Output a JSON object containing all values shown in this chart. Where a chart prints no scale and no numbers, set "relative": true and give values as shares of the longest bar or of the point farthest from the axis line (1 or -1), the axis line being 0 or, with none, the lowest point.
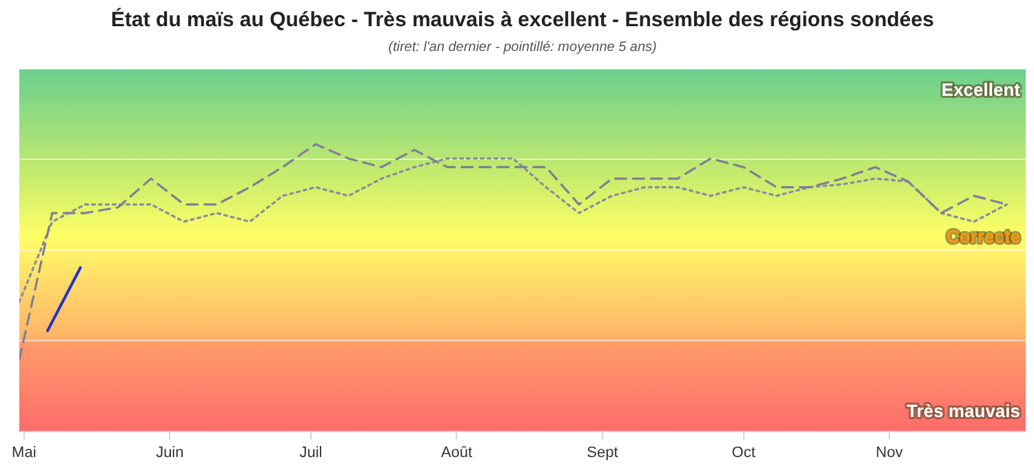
{
  "chart_data": {
    "type": "line",
    "title": "État du maïs au Québec - Très mauvais à excellent - Ensemble des régions sondées",
    "subtitle": "(tiret: l'an dernier - pointillé: moyenne 5 ans)",
    "relative": true,
    "xlim": [
      "--04-30",
      "--11-30"
    ],
    "xticks": [
      {
        "value": "--05-01",
        "label": "Mai"
      },
      {
        "value": "--06-01",
        "label": "Juin"
      },
      {
        "value": "--07-01",
        "label": "Juil"
      },
      {
        "value": "--08-01",
        "label": "Août"
      },
      {
        "value": "--09-01",
        "label": "Sept"
      },
      {
        "value": "--10-01",
        "label": "Oct"
      },
      {
        "value": "--11-01",
        "label": "Nov"
      }
    ],
    "grid": "y",
    "annotations": [
      "Excellent",
      "Correcte",
      "Très mauvais"
    ],
    "series": [
      {
        "color": "#7f7f95",
        "line_style": "dashed",
        "x": [
          "--04-30",
          "--05-07",
          "--05-14",
          "--05-21",
          "--05-28",
          "--06-04",
          "--06-11",
          "--06-18",
          "--06-25",
          "--07-02",
          "--07-09",
          "--07-16",
          "--07-23",
          "--07-30",
          "--08-06",
          "--08-13",
          "--08-20",
          "--08-27",
          "--09-03",
          "--09-10",
          "--09-17",
          "--09-24",
          "--10-01",
          "--10-08",
          "--10-15",
          "--10-22",
          "--10-29",
          "--11-05",
          "--11-12",
          "--11-19",
          "--11-26"
        ],
        "values": [
          0.25,
          0.76,
          0.76,
          0.78,
          0.88,
          0.79,
          0.79,
          0.85,
          0.92,
          1,
          0.95,
          0.92,
          0.98,
          0.92,
          0.92,
          0.92,
          0.92,
          0.79,
          0.88,
          0.88,
          0.88,
          0.95,
          0.92,
          0.85,
          0.85,
          0.88,
          0.92,
          0.87,
          0.76,
          0.82,
          0.79
        ]
      },
      {
        "color": "#8a8aa0",
        "line_style": "dotted",
        "x": [
          "--04-30",
          "--05-07",
          "--05-14",
          "--05-21",
          "--05-28",
          "--06-04",
          "--06-11",
          "--06-18",
          "--06-25",
          "--07-02",
          "--07-09",
          "--07-16",
          "--07-23",
          "--07-30",
          "--08-06",
          "--08-13",
          "--08-20",
          "--08-27",
          "--09-03",
          "--09-10",
          "--09-17",
          "--09-24",
          "--10-01",
          "--10-08",
          "--10-15",
          "--10-22",
          "--10-29",
          "--11-05",
          "--11-12",
          "--11-19",
          "--11-26"
        ],
        "values": [
          0.45,
          0.73,
          0.79,
          0.79,
          0.79,
          0.73,
          0.76,
          0.73,
          0.82,
          0.85,
          0.82,
          0.88,
          0.92,
          0.95,
          0.95,
          0.95,
          0.85,
          0.76,
          0.82,
          0.85,
          0.85,
          0.82,
          0.85,
          0.82,
          0.85,
          0.86,
          0.88,
          0.87,
          0.76,
          0.73,
          0.79
        ]
      },
      {
        "color": "#2233cc",
        "line_style": "solid",
        "x": [
          "--05-06",
          "--05-13"
        ],
        "values": [
          0.35,
          0.57
        ]
      }
    ]
  }
}
